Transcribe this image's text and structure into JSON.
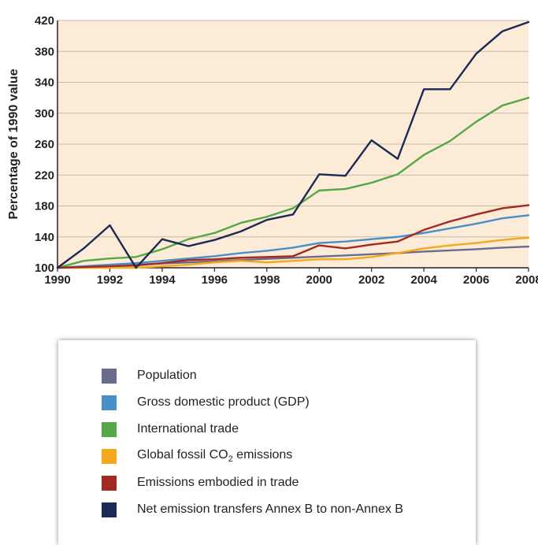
{
  "chart_data": {
    "type": "line",
    "ylabel": "Percentage of 1990 value",
    "xlabel": "",
    "xlim": [
      1990,
      2008
    ],
    "ylim": [
      100,
      420
    ],
    "x_ticks": [
      "1990",
      "1992",
      "1994",
      "1996",
      "1998",
      "2000",
      "2002",
      "2004",
      "2006",
      "2008"
    ],
    "y_ticks": [
      "100",
      "140",
      "180",
      "220",
      "260",
      "300",
      "340",
      "380",
      "420"
    ],
    "grid": "horizontal",
    "background_color": "#fcebd6",
    "x": [
      1990,
      1991,
      1992,
      1993,
      1994,
      1995,
      1996,
      1997,
      1998,
      1999,
      2000,
      2001,
      2002,
      2003,
      2004,
      2005,
      2006,
      2007,
      2008
    ],
    "series": [
      {
        "name": "Population",
        "color": "#6b6b8e",
        "values": [
          100,
          101.5,
          103,
          104,
          105.5,
          107,
          108.5,
          110,
          111.5,
          113,
          114.5,
          116,
          117.5,
          119,
          121,
          122.5,
          124,
          126,
          127.5
        ]
      },
      {
        "name": "Gross domestic product (GDP)",
        "color": "#4a90c8",
        "values": [
          100,
          102,
          104,
          106,
          109,
          112,
          115,
          119,
          122,
          126,
          132,
          134,
          137,
          140,
          145,
          151,
          157,
          164,
          168
        ]
      },
      {
        "name": "International trade",
        "color": "#55a848",
        "values": [
          100,
          109,
          112,
          114,
          124,
          137,
          145,
          158,
          166,
          177,
          200,
          202,
          210,
          221,
          246,
          264,
          289,
          310,
          320
        ]
      },
      {
        "name": "Global fossil CO",
        "name_sub": "2",
        "name_suffix": " emissions",
        "color": "#f5a81c",
        "values": [
          100,
          100,
          100,
          100,
          102,
          104,
          107,
          109,
          107,
          109,
          111,
          111,
          114,
          119,
          125,
          129,
          132,
          136,
          139
        ]
      },
      {
        "name": "Emissions embodied in trade",
        "color": "#a32a22",
        "values": [
          100,
          101,
          102,
          103,
          106,
          110,
          111,
          113,
          114,
          115,
          129,
          125,
          130,
          134,
          149,
          160,
          169,
          177,
          181
        ]
      },
      {
        "name": "Net emission transfers Annex B to non-Annex B",
        "color": "#1a2a55",
        "values": [
          100,
          125,
          155,
          100,
          137,
          128,
          136,
          147,
          162,
          169,
          221,
          219,
          265,
          241,
          331,
          331,
          377,
          406,
          418
        ]
      }
    ]
  }
}
